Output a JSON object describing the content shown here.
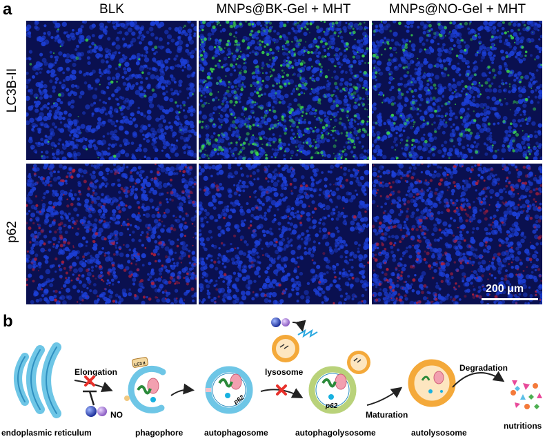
{
  "panel_a": {
    "letter": "a",
    "columns": [
      "BLK",
      "MNPs@BK-Gel + MHT",
      "MNPs@NO-Gel + MHT"
    ],
    "rows": [
      "LC3B-II",
      "p62"
    ],
    "scale_bar": "200 μm",
    "colors": {
      "nuclei": "#1c3fd6",
      "lc3b": "#3bd84a",
      "p62": "#b0203a",
      "background": "#0a1050"
    },
    "green_intensity": [
      0.05,
      0.75,
      0.3
    ],
    "red_intensity": [
      0.35,
      0.1,
      0.45
    ]
  },
  "panel_b": {
    "letter": "b",
    "labels": {
      "er": "endoplasmic reticulum",
      "elongation": "Elongation",
      "no": "NO",
      "lc3": "LC3 II",
      "phagophore": "phagophore",
      "autophagosome": "autophagosome",
      "lysosome": "lysosome",
      "p62": "p62",
      "autophagolysosome": "autophagolysosome",
      "maturation": "Maturation",
      "autolysosome": "autolysosome",
      "degradation": "Degradation",
      "nutritions": "nutritions"
    },
    "colors": {
      "membrane": "#6ec6e6",
      "membrane_dark": "#2f8fc0",
      "lysosome": "#f4a93a",
      "block": "#e8302a",
      "arrow": "#222222"
    }
  }
}
